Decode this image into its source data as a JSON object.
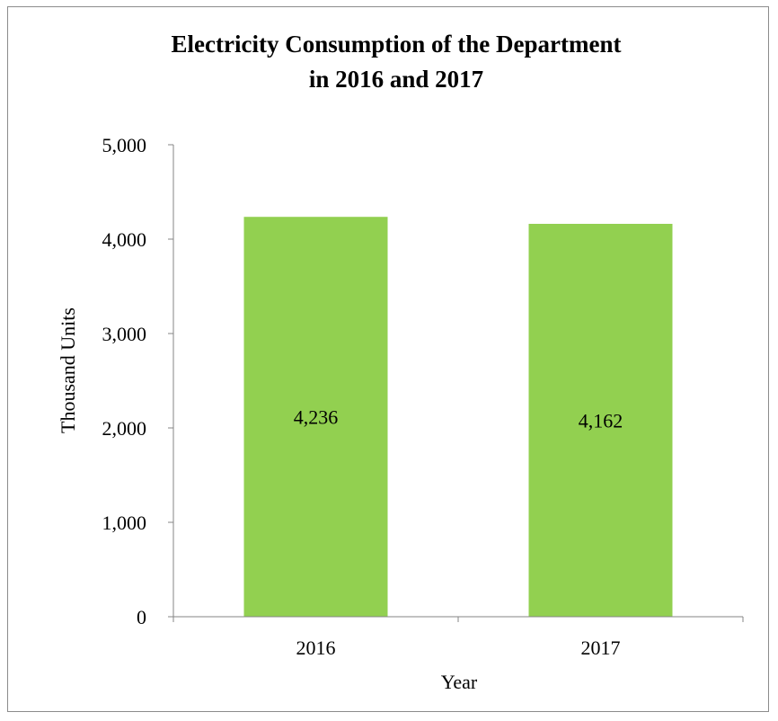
{
  "chart_data": {
    "type": "bar",
    "title": [
      "Electricity Consumption of the Department",
      "in 2016 and 2017"
    ],
    "xlabel": "Year",
    "ylabel": "Thousand Units",
    "categories": [
      "2016",
      "2017"
    ],
    "values": [
      4236,
      4162
    ],
    "data_labels": [
      "4,236",
      "4,162"
    ],
    "ylim": [
      0,
      5000
    ],
    "yticks": [
      0,
      1000,
      2000,
      3000,
      4000,
      5000
    ],
    "ytick_labels": [
      "0",
      "1,000",
      "2,000",
      "3,000",
      "4,000",
      "5,000"
    ],
    "bar_color": "#92d050",
    "grid": false,
    "legend": "none"
  }
}
